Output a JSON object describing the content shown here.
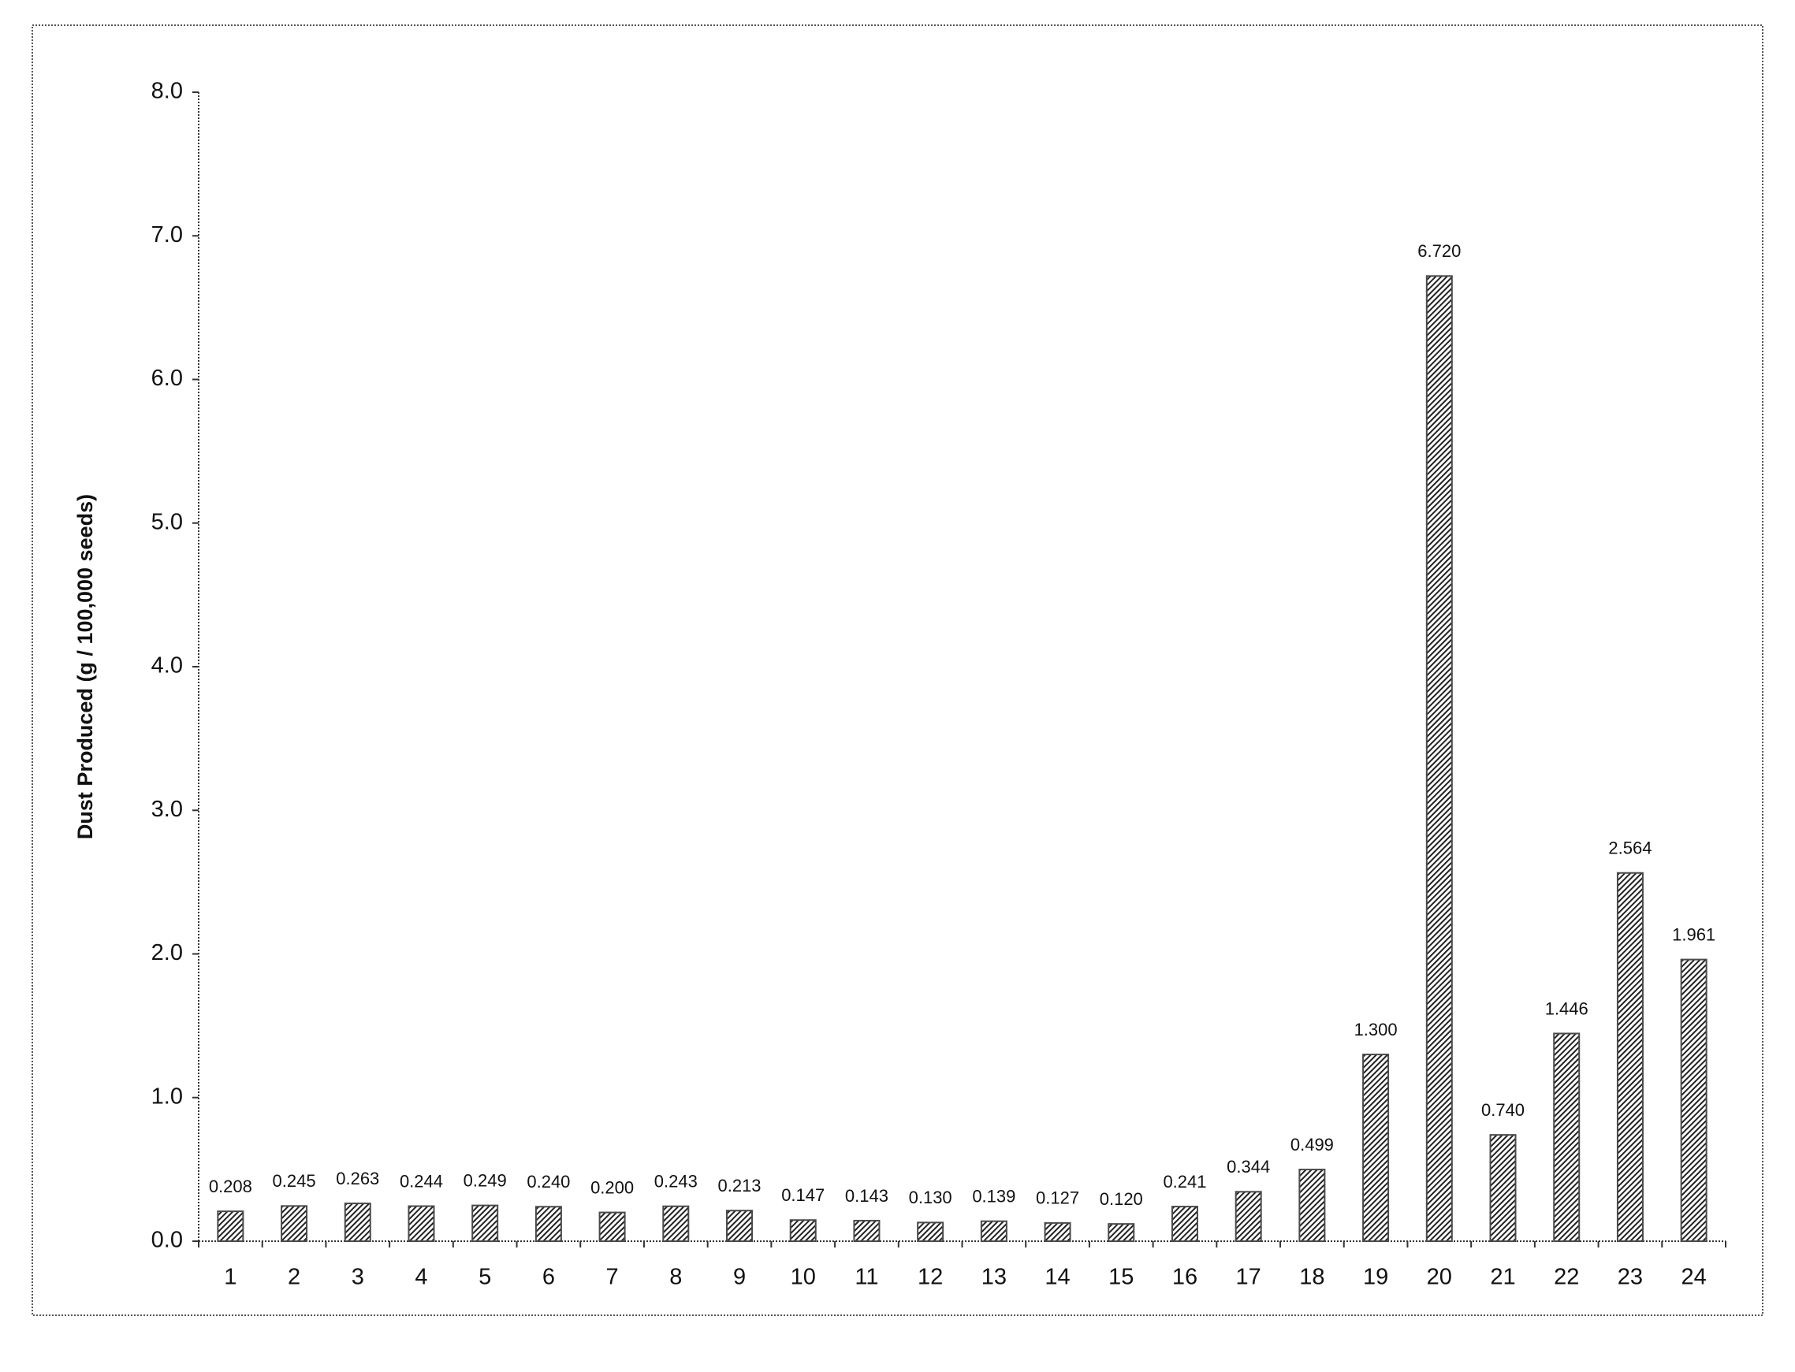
{
  "chart_data": {
    "type": "bar",
    "y_label": "Dust Produced (g / 100,000 seeds)",
    "categories": [
      "1",
      "2",
      "3",
      "4",
      "5",
      "6",
      "7",
      "8",
      "9",
      "10",
      "11",
      "12",
      "13",
      "14",
      "15",
      "16",
      "17",
      "18",
      "19",
      "20",
      "21",
      "22",
      "23",
      "24"
    ],
    "values": [
      0.208,
      0.245,
      0.263,
      0.244,
      0.249,
      0.24,
      0.2,
      0.243,
      0.213,
      0.147,
      0.143,
      0.13,
      0.139,
      0.127,
      0.12,
      0.241,
      0.344,
      0.499,
      1.3,
      6.72,
      0.74,
      1.446,
      2.564,
      1.961
    ],
    "value_labels": [
      "0.208",
      "0.245",
      "0.263",
      "0.244",
      "0.249",
      "0.240",
      "0.200",
      "0.243",
      "0.213",
      "0.147",
      "0.143",
      "0.130",
      "0.139",
      "0.127",
      "0.120",
      "0.241",
      "0.344",
      "0.499",
      "1.300",
      "6.720",
      "0.740",
      "1.446",
      "2.564",
      "1.961"
    ],
    "color": "#4a4a4a",
    "ylim": [
      0,
      8
    ],
    "yticks": [
      {
        "value": 0,
        "label": "0.0"
      },
      {
        "value": 1,
        "label": "1.0"
      },
      {
        "value": 2,
        "label": "2.0"
      },
      {
        "value": 3,
        "label": "3.0"
      },
      {
        "value": 4,
        "label": "4.0"
      },
      {
        "value": 5,
        "label": "5.0"
      },
      {
        "value": 6,
        "label": "6.0"
      },
      {
        "value": 7,
        "label": "7.0"
      },
      {
        "value": 8,
        "label": "8.0"
      }
    ]
  }
}
